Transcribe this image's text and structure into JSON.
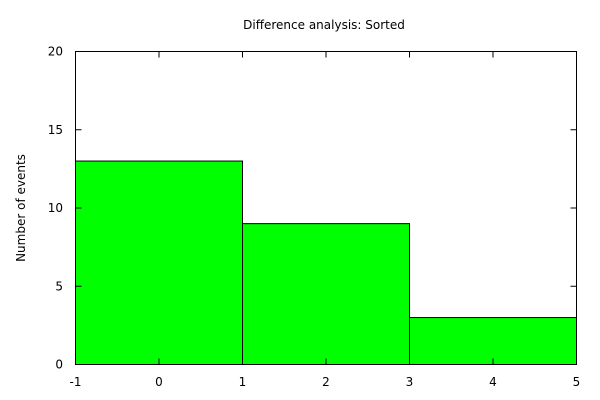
{
  "chart_data": {
    "type": "bar",
    "title": "Difference analysis: Sorted",
    "xlabel": "",
    "ylabel": "Number of events",
    "bins": [
      {
        "x0": -1,
        "x1": 1,
        "value": 13
      },
      {
        "x0": 1,
        "x1": 3,
        "value": 9
      },
      {
        "x0": 3,
        "x1": 5,
        "value": 3
      }
    ],
    "xlim": [
      -1,
      5
    ],
    "ylim": [
      0,
      20
    ],
    "xticks": [
      -1,
      0,
      1,
      2,
      3,
      4,
      5
    ],
    "yticks": [
      0,
      5,
      10,
      15,
      20
    ],
    "grid": false,
    "colors": {
      "bar_fill": "#00ff00",
      "bar_stroke": "#000000",
      "axis": "#000000"
    }
  }
}
